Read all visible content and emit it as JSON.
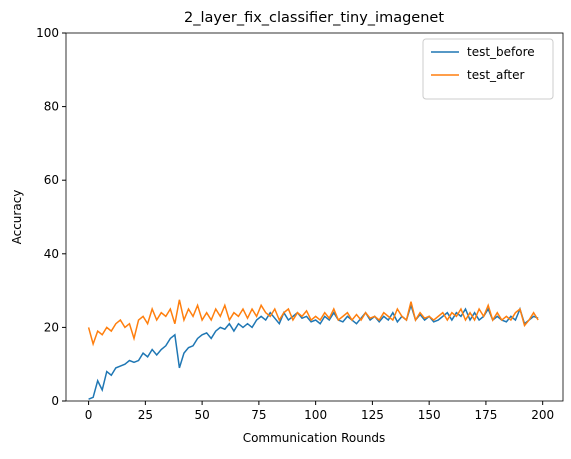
{
  "chart_data": {
    "type": "line",
    "title": "2_layer_fix_classifier_tiny_imagenet",
    "x_label": "Communication Rounds",
    "y_label": "Accuracy",
    "x": [
      0,
      2,
      4,
      6,
      8,
      10,
      12,
      14,
      16,
      18,
      20,
      22,
      24,
      26,
      28,
      30,
      32,
      34,
      36,
      38,
      40,
      42,
      44,
      46,
      48,
      50,
      52,
      54,
      56,
      58,
      60,
      62,
      64,
      66,
      68,
      70,
      72,
      74,
      76,
      78,
      80,
      82,
      84,
      86,
      88,
      90,
      92,
      94,
      96,
      98,
      100,
      102,
      104,
      106,
      108,
      110,
      112,
      114,
      116,
      118,
      120,
      122,
      124,
      126,
      128,
      130,
      132,
      134,
      136,
      138,
      140,
      142,
      144,
      146,
      148,
      150,
      152,
      154,
      156,
      158,
      160,
      162,
      164,
      166,
      168,
      170,
      172,
      174,
      176,
      178,
      180,
      182,
      184,
      186,
      188,
      190,
      192,
      194,
      196,
      198
    ],
    "series": [
      {
        "name": "test_before",
        "color": "#1f77b4",
        "values": [
          0.5,
          1,
          5.5,
          3,
          8,
          7,
          9,
          9.5,
          10,
          11,
          10.5,
          11,
          13,
          12,
          14,
          12.5,
          14,
          15,
          17,
          18,
          9,
          13,
          14.5,
          15,
          17,
          18,
          18.5,
          17,
          19,
          20,
          19.5,
          21,
          19,
          21,
          20,
          21,
          20,
          22,
          23,
          22,
          24,
          22.5,
          21,
          24,
          22,
          23,
          24,
          22.5,
          23,
          21.5,
          22,
          21,
          23,
          22,
          24,
          22,
          21.5,
          23,
          22,
          21,
          22.5,
          24,
          22,
          23,
          21.5,
          23,
          22,
          24,
          21.5,
          23,
          22,
          26,
          22,
          23.5,
          22,
          23,
          21.5,
          22,
          23,
          24,
          22,
          24,
          23,
          25,
          22,
          24,
          22,
          23,
          25,
          22,
          23,
          22,
          21.5,
          23,
          22,
          25,
          21,
          22,
          23,
          22.5
        ]
      },
      {
        "name": "test_after",
        "color": "#ff7f0e",
        "values": [
          20,
          15.5,
          19,
          18,
          20,
          19,
          21,
          22,
          20,
          21,
          17,
          22,
          23,
          21,
          25,
          22,
          24,
          23,
          25,
          21,
          27.5,
          22,
          25,
          23,
          26,
          22,
          24,
          22,
          25,
          23,
          26,
          22,
          24,
          23,
          25,
          22.5,
          25,
          23,
          26,
          24,
          23,
          25,
          22,
          24,
          25,
          22,
          24,
          23,
          24.5,
          22,
          23,
          22,
          24,
          22.5,
          25,
          22,
          23,
          24,
          22,
          23.5,
          22,
          24,
          22.5,
          23,
          22,
          24,
          23,
          22,
          25,
          23,
          22,
          27,
          22,
          24,
          22.5,
          23,
          22,
          23,
          24,
          22,
          24,
          23,
          25,
          22,
          24,
          22,
          25,
          23,
          26,
          22,
          24,
          22,
          23,
          22,
          24,
          25,
          20.5,
          22,
          24,
          22
        ]
      }
    ],
    "xlim": [
      -9.95,
      208.95
    ],
    "ylim": [
      0,
      100
    ],
    "xticks": [
      0,
      25,
      50,
      75,
      100,
      125,
      150,
      175,
      200
    ],
    "yticks": [
      0,
      20,
      40,
      60,
      80,
      100
    ],
    "legend": "upper right"
  }
}
